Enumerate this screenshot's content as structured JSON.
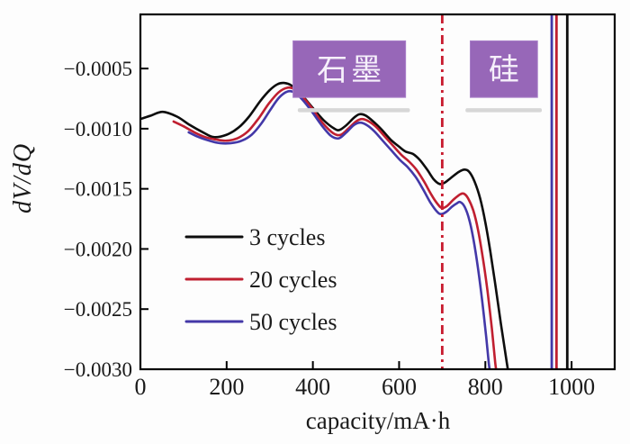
{
  "chart_data": {
    "type": "line",
    "title": "",
    "xlabel": "capacity/mA·h",
    "ylabel": "dV/dQ",
    "xlim": [
      0,
      1100
    ],
    "ylim": [
      -0.003,
      -5e-05
    ],
    "x_ticks": [
      0,
      200,
      400,
      600,
      800,
      1000
    ],
    "x_tick_labels": [
      "0",
      "200",
      "400",
      "600",
      "800",
      "1000"
    ],
    "y_ticks": [
      -0.0005,
      -0.001,
      -0.0015,
      -0.002,
      -0.0025,
      -0.003
    ],
    "y_tick_labels": [
      "−0.0005",
      "−0.0010",
      "−0.0015",
      "−0.0020",
      "−0.0025",
      "−0.0030"
    ],
    "grid": false,
    "legend_position": "center-left",
    "axis_color": "#000000",
    "series": [
      {
        "name": "3 cycles",
        "color": "#0d0d0d",
        "points": [
          [
            0,
            -0.00092
          ],
          [
            25,
            -0.00089
          ],
          [
            52,
            -0.00086
          ],
          [
            85,
            -0.0009
          ],
          [
            115,
            -0.00097
          ],
          [
            145,
            -0.00103
          ],
          [
            170,
            -0.00107
          ],
          [
            200,
            -0.00105
          ],
          [
            228,
            -0.00099
          ],
          [
            252,
            -0.0009
          ],
          [
            278,
            -0.00077
          ],
          [
            300,
            -0.00068
          ],
          [
            318,
            -0.00063
          ],
          [
            333,
            -0.00062
          ],
          [
            350,
            -0.00064
          ],
          [
            372,
            -0.00071
          ],
          [
            398,
            -0.00082
          ],
          [
            425,
            -0.00093
          ],
          [
            450,
            -0.001
          ],
          [
            462,
            -0.00101
          ],
          [
            478,
            -0.00097
          ],
          [
            495,
            -0.00091
          ],
          [
            508,
            -0.00088
          ],
          [
            522,
            -0.00089
          ],
          [
            540,
            -0.00094
          ],
          [
            560,
            -0.00101
          ],
          [
            580,
            -0.00109
          ],
          [
            600,
            -0.00115
          ],
          [
            615,
            -0.00119
          ],
          [
            632,
            -0.00121
          ],
          [
            648,
            -0.00126
          ],
          [
            665,
            -0.00134
          ],
          [
            680,
            -0.00142
          ],
          [
            694,
            -0.00146
          ],
          [
            705,
            -0.00145
          ],
          [
            720,
            -0.00141
          ],
          [
            738,
            -0.00136
          ],
          [
            752,
            -0.00134
          ],
          [
            763,
            -0.00136
          ],
          [
            775,
            -0.00144
          ],
          [
            788,
            -0.00158
          ],
          [
            800,
            -0.00178
          ],
          [
            812,
            -0.00203
          ],
          [
            824,
            -0.00232
          ],
          [
            836,
            -0.00262
          ],
          [
            847,
            -0.00288
          ],
          [
            853,
            -0.00302
          ]
        ]
      },
      {
        "name": "20 cycles",
        "color": "#c01f30",
        "points": [
          [
            77,
            -0.00094
          ],
          [
            100,
            -0.00098
          ],
          [
            125,
            -0.00103
          ],
          [
            150,
            -0.00107
          ],
          [
            175,
            -0.00109
          ],
          [
            200,
            -0.0011
          ],
          [
            225,
            -0.00108
          ],
          [
            250,
            -0.00102
          ],
          [
            275,
            -0.00091
          ],
          [
            298,
            -0.00079
          ],
          [
            320,
            -0.0007
          ],
          [
            340,
            -0.00066
          ],
          [
            356,
            -0.00067
          ],
          [
            375,
            -0.00073
          ],
          [
            398,
            -0.00083
          ],
          [
            422,
            -0.00095
          ],
          [
            448,
            -0.00104
          ],
          [
            465,
            -0.00105
          ],
          [
            482,
            -0.001
          ],
          [
            500,
            -0.00094
          ],
          [
            514,
            -0.00092
          ],
          [
            530,
            -0.00094
          ],
          [
            548,
            -0.00099
          ],
          [
            568,
            -0.00107
          ],
          [
            588,
            -0.00115
          ],
          [
            606,
            -0.00122
          ],
          [
            622,
            -0.00127
          ],
          [
            640,
            -0.00134
          ],
          [
            658,
            -0.00144
          ],
          [
            675,
            -0.00155
          ],
          [
            690,
            -0.00163
          ],
          [
            700,
            -0.00166
          ],
          [
            712,
            -0.00164
          ],
          [
            726,
            -0.00159
          ],
          [
            740,
            -0.00155
          ],
          [
            750,
            -0.00154
          ],
          [
            760,
            -0.00158
          ],
          [
            772,
            -0.00168
          ],
          [
            783,
            -0.00184
          ],
          [
            794,
            -0.00207
          ],
          [
            805,
            -0.00235
          ],
          [
            815,
            -0.00266
          ],
          [
            823,
            -0.00295
          ],
          [
            826,
            -0.00302
          ]
        ]
      },
      {
        "name": "50 cycles",
        "color": "#4338a8",
        "points": [
          [
            112,
            -0.00103
          ],
          [
            135,
            -0.00107
          ],
          [
            160,
            -0.0011
          ],
          [
            185,
            -0.00112
          ],
          [
            210,
            -0.00112
          ],
          [
            235,
            -0.0011
          ],
          [
            258,
            -0.00105
          ],
          [
            280,
            -0.00096
          ],
          [
            302,
            -0.00084
          ],
          [
            322,
            -0.00074
          ],
          [
            342,
            -0.00069
          ],
          [
            358,
            -0.0007
          ],
          [
            376,
            -0.00076
          ],
          [
            398,
            -0.00086
          ],
          [
            420,
            -0.00097
          ],
          [
            442,
            -0.00106
          ],
          [
            460,
            -0.00108
          ],
          [
            478,
            -0.00103
          ],
          [
            495,
            -0.00097
          ],
          [
            510,
            -0.00095
          ],
          [
            525,
            -0.00097
          ],
          [
            542,
            -0.00102
          ],
          [
            562,
            -0.0011
          ],
          [
            582,
            -0.00118
          ],
          [
            602,
            -0.00126
          ],
          [
            620,
            -0.00132
          ],
          [
            638,
            -0.0014
          ],
          [
            655,
            -0.0015
          ],
          [
            672,
            -0.00161
          ],
          [
            688,
            -0.00169
          ],
          [
            698,
            -0.00171
          ],
          [
            710,
            -0.00169
          ],
          [
            722,
            -0.00165
          ],
          [
            734,
            -0.00162
          ],
          [
            742,
            -0.00161
          ],
          [
            752,
            -0.00165
          ],
          [
            763,
            -0.00176
          ],
          [
            773,
            -0.00193
          ],
          [
            783,
            -0.00216
          ],
          [
            793,
            -0.00244
          ],
          [
            802,
            -0.00273
          ],
          [
            808,
            -0.00295
          ],
          [
            811,
            -0.00302
          ]
        ]
      }
    ],
    "vlines": [
      {
        "name": "region-divider-line",
        "x": 700,
        "color": "#c81b2e",
        "style": "dash-dot",
        "width": 2.8
      },
      {
        "name": "vline-50-cycles",
        "x": 954,
        "color": "#4338a8",
        "style": "solid",
        "width": 2.8
      },
      {
        "name": "vline-20-cycles",
        "x": 965,
        "color": "#c01f30",
        "style": "solid",
        "width": 2.8
      },
      {
        "name": "vline-3-cycles",
        "x": 990,
        "color": "#0d0d0d",
        "style": "solid",
        "width": 2.8
      }
    ],
    "annotations": [
      {
        "name": "graphite",
        "label": "石墨",
        "box_x_range": [
          354,
          615
        ],
        "box_y_range": [
          -0.00074,
          -0.00027
        ],
        "box_color": "#9767b8",
        "box_border_color": "#a87fc8",
        "text_color": "#f6f0fb",
        "underline": {
          "x_range": [
            365,
            625
          ],
          "y": -0.00083,
          "color": "#d7d7d7"
        }
      },
      {
        "name": "silicon",
        "label": "硅",
        "box_x_range": [
          765,
          921
        ],
        "box_y_range": [
          -0.00074,
          -0.00027
        ],
        "box_color": "#9767b8",
        "box_border_color": "#a87fc8",
        "text_color": "#f6f0fb",
        "underline": {
          "x_range": [
            754,
            931
          ],
          "y": -0.00083,
          "color": "#d7d7d7"
        }
      }
    ]
  }
}
